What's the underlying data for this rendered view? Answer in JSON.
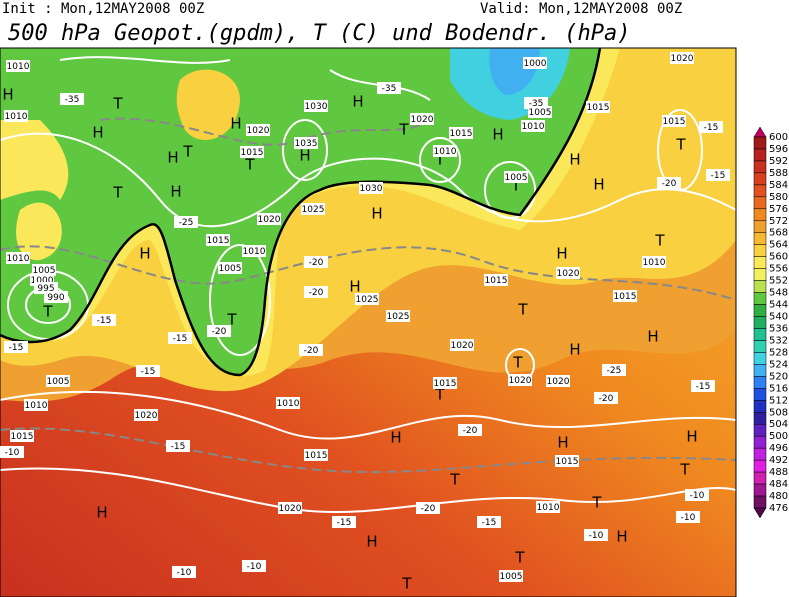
{
  "header": {
    "init": "Init : Mon,12MAY2008 00Z",
    "valid": "Valid: Mon,12MAY2008 00Z",
    "title": "500 hPa Geopot.(gpdm), T (C) und Bodendr. (hPa)"
  },
  "colorbar": {
    "levels": [
      600,
      596,
      592,
      588,
      584,
      580,
      576,
      572,
      568,
      564,
      560,
      556,
      552,
      548,
      544,
      540,
      536,
      532,
      528,
      524,
      520,
      516,
      512,
      508,
      504,
      500,
      496,
      492,
      488,
      484,
      480,
      476
    ],
    "colors": [
      "#c0005a",
      "#a01818",
      "#b82020",
      "#c83020",
      "#d84020",
      "#e05020",
      "#e86a20",
      "#f08a20",
      "#f0a030",
      "#f5b830",
      "#f8d040",
      "#fae85a",
      "#f0f060",
      "#b8e050",
      "#60c840",
      "#30b040",
      "#20b060",
      "#20c090",
      "#30d0b0",
      "#40d0e0",
      "#40b0f0",
      "#3080f0",
      "#2050e0",
      "#2030c0",
      "#3020a0",
      "#6020c0",
      "#9020d0",
      "#c020e0",
      "#e020e0",
      "#d020b0",
      "#a01890",
      "#701060",
      "#500848"
    ]
  },
  "map_labels": [
    "1010",
    "H",
    "-35",
    "T",
    "1010",
    "H",
    "T",
    "H",
    "1020",
    "1030",
    "H",
    "1035",
    "H",
    "T",
    "1015",
    "-35",
    "T",
    "1020",
    "1015",
    "H",
    "1000",
    "-35",
    "1005",
    "1010",
    "1015",
    "H",
    "T",
    "1010",
    "T",
    "1005",
    "1020",
    "1015",
    "-15",
    "T",
    "-20",
    "-15",
    "H",
    "T",
    "H",
    "-25",
    "1030",
    "H",
    "1025",
    "1020",
    "1015",
    "1010",
    "H",
    "1010",
    "1005",
    "1000",
    "995",
    "990",
    "T",
    "-15",
    "-15",
    "1005",
    "-20",
    "T",
    "-15",
    "1025",
    "H",
    "1025",
    "1020",
    "T",
    "H",
    "1020",
    "1015",
    "-20",
    "-20",
    "-20",
    "1010",
    "1005",
    "1010",
    "1020",
    "1015",
    "-10",
    "-15",
    "-15",
    "H",
    "T",
    "1020",
    "1020",
    "T",
    "1015",
    "H",
    "-20",
    "H",
    "1015",
    "T",
    "-20",
    "H",
    "1020",
    "-15",
    "1015",
    "1010",
    "T",
    "-15",
    "H",
    "T",
    "1005",
    "T",
    "-10",
    "-10",
    "H",
    "-10",
    "-10",
    "T",
    "-10",
    "H",
    "-15",
    "T",
    "1010",
    "1015",
    "H",
    "-25",
    "-20",
    "H"
  ]
}
